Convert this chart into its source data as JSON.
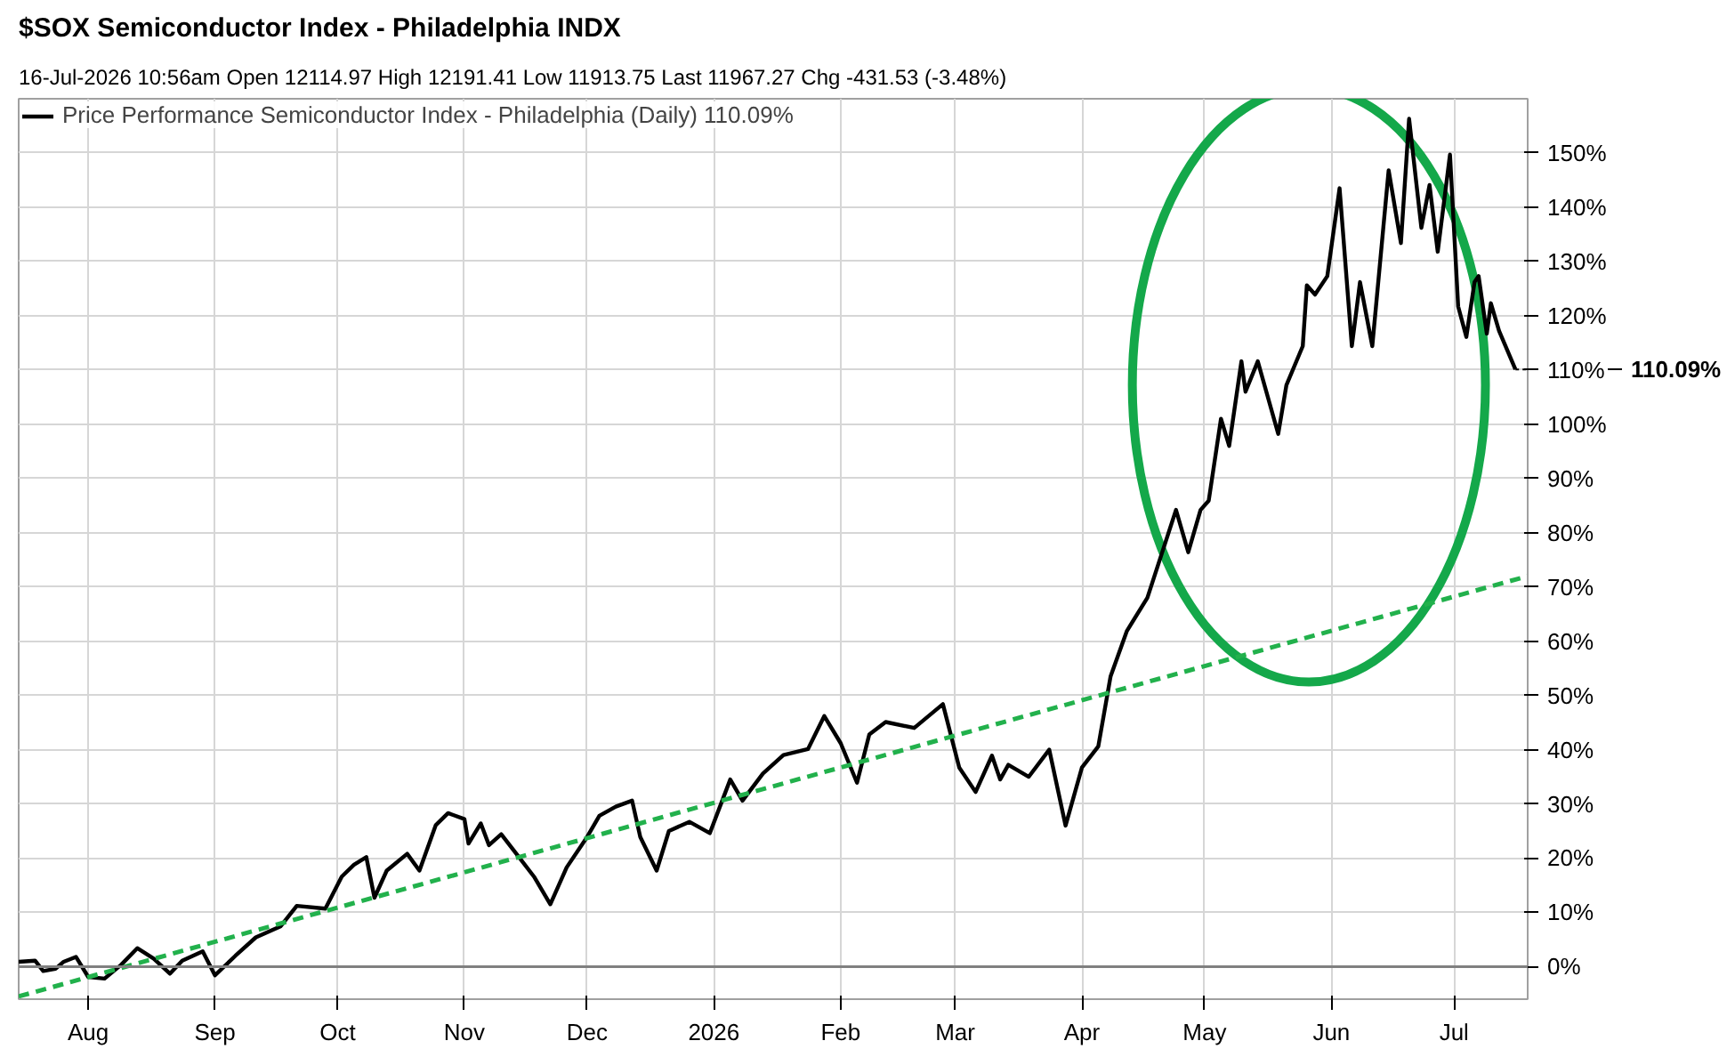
{
  "chart_data": {
    "type": "line",
    "title": "$SOX Semiconductor Index - Philadelphia INDX",
    "subtitle": "16-Jul-2026 10:56am   Open 12114.97   High 12191.41   Low 11913.75   Last 11967.27   Chg -431.53 (-3.48%)",
    "xlim": [
      "2025-07-15",
      "2026-07-19"
    ],
    "ylim": [
      -6,
      160
    ],
    "xticks": [
      {
        "value": "2025-08-01",
        "label": "Aug"
      },
      {
        "value": "2025-09-01",
        "label": "Sep"
      },
      {
        "value": "2025-10-01",
        "label": "Oct"
      },
      {
        "value": "2025-11-01",
        "label": "Nov"
      },
      {
        "value": "2025-12-01",
        "label": "Dec"
      },
      {
        "value": "2026-01-01",
        "label": "2026"
      },
      {
        "value": "2026-02-01",
        "label": "Feb"
      },
      {
        "value": "2026-03-01",
        "label": "Mar"
      },
      {
        "value": "2026-04-01",
        "label": "Apr"
      },
      {
        "value": "2026-05-01",
        "label": "May"
      },
      {
        "value": "2026-06-01",
        "label": "Jun"
      },
      {
        "value": "2026-07-01",
        "label": "Jul"
      }
    ],
    "yticks": [
      {
        "value": 0,
        "label": "0%"
      },
      {
        "value": 10,
        "label": "10%"
      },
      {
        "value": 20,
        "label": "20%"
      },
      {
        "value": 30,
        "label": "30%"
      },
      {
        "value": 40,
        "label": "40%"
      },
      {
        "value": 50,
        "label": "50%"
      },
      {
        "value": 60,
        "label": "60%"
      },
      {
        "value": 70,
        "label": "70%"
      },
      {
        "value": 80,
        "label": "80%"
      },
      {
        "value": 90,
        "label": "90%"
      },
      {
        "value": 100,
        "label": "100%"
      },
      {
        "value": 110,
        "label": "110%"
      },
      {
        "value": 120,
        "label": "120%"
      },
      {
        "value": 130,
        "label": "130%"
      },
      {
        "value": 140,
        "label": "140%"
      },
      {
        "value": 150,
        "label": "150%"
      }
    ],
    "grid": true,
    "legend": "top left",
    "ref_lines": [
      {
        "axis": "y",
        "value": 0,
        "color": "#808080"
      }
    ],
    "annotations": [
      "110.09%"
    ],
    "series": [
      {
        "name": "Price Performance Semiconductor Index - Philadelphia (Daily) 110.09%",
        "color": "#000000",
        "x": [
          "2025-07-15",
          "2025-07-19",
          "2025-07-21",
          "2025-07-24",
          "2025-07-26",
          "2025-07-29",
          "2025-08-01",
          "2025-08-05",
          "2025-08-09",
          "2025-08-13",
          "2025-08-17",
          "2025-08-21",
          "2025-08-24",
          "2025-08-29",
          "2025-09-01",
          "2025-09-06",
          "2025-09-11",
          "2025-09-17",
          "2025-09-21",
          "2025-09-28",
          "2025-10-02",
          "2025-10-05",
          "2025-10-08",
          "2025-10-10",
          "2025-10-13",
          "2025-10-18",
          "2025-10-21",
          "2025-10-25",
          "2025-10-28",
          "2025-11-01",
          "2025-11-02",
          "2025-11-05",
          "2025-11-07",
          "2025-11-10",
          "2025-11-14",
          "2025-11-18",
          "2025-11-22",
          "2025-11-26",
          "2025-12-01",
          "2025-12-04",
          "2025-12-08",
          "2025-12-12",
          "2025-12-14",
          "2025-12-18",
          "2025-12-21",
          "2025-12-26",
          "2025-12-31",
          "2026-01-05",
          "2026-01-08",
          "2026-01-13",
          "2026-01-18",
          "2026-01-24",
          "2026-01-28",
          "2026-02-01",
          "2026-02-05",
          "2026-02-08",
          "2026-02-12",
          "2026-02-19",
          "2026-02-26",
          "2026-03-02",
          "2026-03-06",
          "2026-03-10",
          "2026-03-12",
          "2026-03-14",
          "2026-03-19",
          "2026-03-24",
          "2026-03-28",
          "2026-04-01",
          "2026-04-05",
          "2026-04-08",
          "2026-04-12",
          "2026-04-17",
          "2026-04-24",
          "2026-04-27",
          "2026-04-30",
          "2026-05-02",
          "2026-05-05",
          "2026-05-07",
          "2026-05-10",
          "2026-05-11",
          "2026-05-14",
          "2026-05-19",
          "2026-05-21",
          "2026-05-25",
          "2026-05-26",
          "2026-05-28",
          "2026-05-31",
          "2026-06-03",
          "2026-06-06",
          "2026-06-08",
          "2026-06-11",
          "2026-06-13",
          "2026-06-15",
          "2026-06-18",
          "2026-06-20",
          "2026-06-23",
          "2026-06-25",
          "2026-06-27",
          "2026-06-30",
          "2026-07-02",
          "2026-07-04",
          "2026-07-06",
          "2026-07-07",
          "2026-07-09",
          "2026-07-10",
          "2026-07-12",
          "2026-07-16"
        ],
        "values": [
          0.9,
          1.1,
          -0.8,
          -0.4,
          0.9,
          1.8,
          -1.9,
          -2.2,
          0.3,
          3.4,
          1.5,
          -1.3,
          1.1,
          2.8,
          -1.6,
          2.0,
          5.4,
          7.4,
          11.2,
          10.7,
          16.6,
          18.8,
          20.2,
          12.7,
          17.7,
          20.8,
          17.7,
          26.1,
          28.3,
          27.2,
          22.7,
          26.4,
          22.4,
          24.4,
          20.5,
          16.6,
          11.5,
          18.3,
          23.9,
          27.8,
          29.5,
          30.6,
          23.9,
          17.7,
          25.0,
          26.7,
          24.6,
          34.5,
          30.6,
          35.6,
          39.0,
          40.1,
          46.2,
          41.2,
          33.9,
          42.8,
          45.1,
          44.0,
          48.4,
          36.7,
          32.2,
          38.9,
          34.5,
          37.2,
          35.0,
          40.0,
          26.0,
          36.7,
          40.6,
          53.5,
          61.9,
          68.0,
          84.2,
          76.4,
          84.2,
          85.9,
          101.0,
          96.0,
          111.6,
          106.0,
          111.6,
          98.2,
          107.2,
          114.4,
          125.6,
          123.9,
          127.3,
          143.5,
          114.4,
          126.2,
          114.4,
          130.6,
          146.8,
          133.4,
          156.3,
          136.2,
          144.1,
          131.8,
          149.7,
          121.7,
          116.1,
          126.2,
          127.3,
          116.7,
          122.3,
          117.2,
          110.1
        ]
      },
      {
        "type": "line",
        "color": "#22b14c",
        "line_style": "dashed",
        "x": [
          "2025-07-15",
          "2026-07-19"
        ],
        "values": [
          -5.5,
          72
        ]
      }
    ]
  }
}
